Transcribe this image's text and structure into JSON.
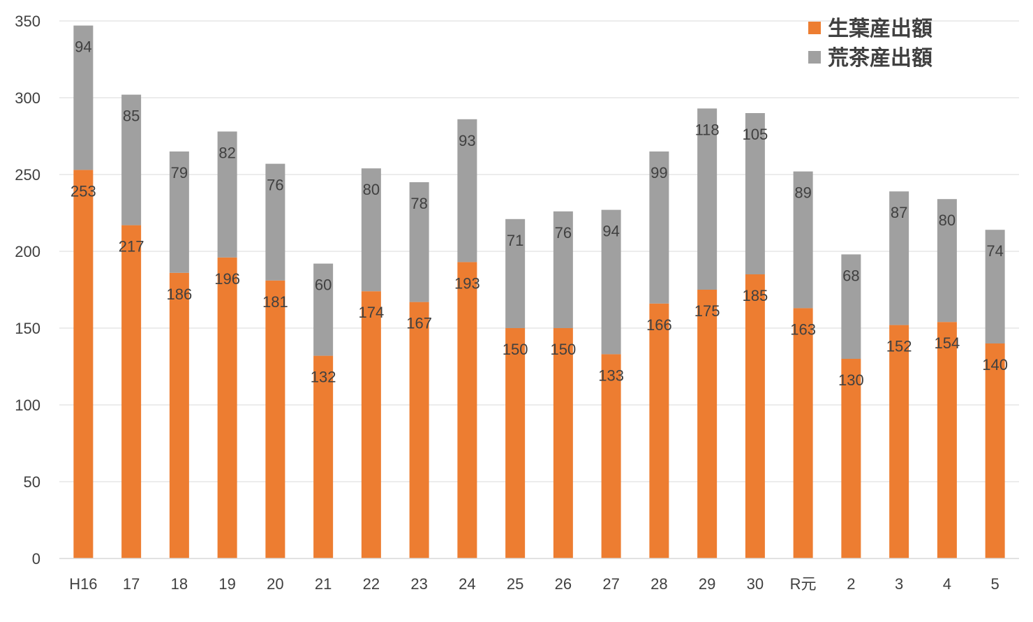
{
  "chart_data": {
    "type": "bar",
    "stacked": true,
    "title": "",
    "xlabel": "",
    "ylabel": "",
    "ylim": [
      0,
      350
    ],
    "yticks": [
      0,
      50,
      100,
      150,
      200,
      250,
      300,
      350
    ],
    "grid": true,
    "legend_position": "top-right",
    "categories": [
      "H16",
      "17",
      "18",
      "19",
      "20",
      "21",
      "22",
      "23",
      "24",
      "25",
      "26",
      "27",
      "28",
      "29",
      "30",
      "R元",
      "2",
      "3",
      "4",
      "5"
    ],
    "series": [
      {
        "name": "生葉産出額",
        "color": "#ED7D31",
        "values": [
          253,
          217,
          186,
          196,
          181,
          132,
          174,
          167,
          193,
          150,
          150,
          133,
          166,
          175,
          185,
          163,
          130,
          152,
          154,
          140
        ]
      },
      {
        "name": "荒茶産出額",
        "color": "#A0A0A0",
        "values": [
          94,
          85,
          79,
          82,
          76,
          60,
          80,
          78,
          93,
          71,
          76,
          94,
          99,
          118,
          105,
          89,
          68,
          87,
          80,
          74
        ]
      }
    ]
  }
}
